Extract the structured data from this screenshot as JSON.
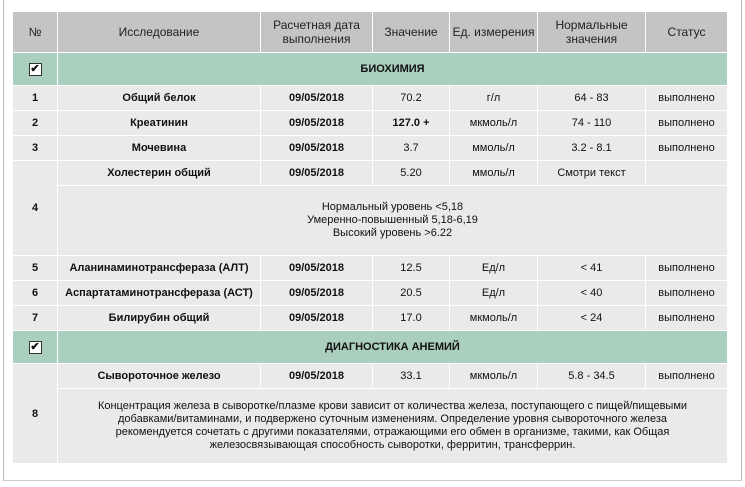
{
  "headers": [
    "№",
    "Исследование",
    "Расчетная дата выполнения",
    "Значение",
    "Ед. измерения",
    "Нормальные значения",
    "Статус"
  ],
  "sections": [
    {
      "title": "БИОХИМИЯ",
      "checked": true,
      "rows": [
        {
          "num": "1",
          "name": "Общий белок",
          "date": "09/05/2018",
          "value": "70.2",
          "unit": "г/л",
          "norm": "64 - 83",
          "status": "выполнено"
        },
        {
          "num": "2",
          "name": "Креатинин",
          "date": "09/05/2018",
          "value": "127.0 +",
          "unit": "мкмоль/л",
          "norm": "74 - 110",
          "status": "выполнено"
        },
        {
          "num": "3",
          "name": "Мочевина",
          "date": "09/05/2018",
          "value": "3.7",
          "unit": "ммоль/л",
          "norm": "3.2 - 8.1",
          "status": "выполнено"
        },
        {
          "num": "4",
          "name": "Холестерин общий",
          "date": "09/05/2018",
          "value": "5.20",
          "unit": "ммоль/л",
          "norm": "Смотри текст",
          "status": "",
          "note": [
            "Нормальный уровень <5,18",
            "Умеренно-повышенный 5,18-6,19",
            "Высокий уровень >6.22"
          ]
        },
        {
          "num": "5",
          "name": "Аланинаминотрансфераза (АЛТ)",
          "date": "09/05/2018",
          "value": "12.5",
          "unit": "Ед/л",
          "norm": "< 41",
          "status": "выполнено"
        },
        {
          "num": "6",
          "name": "Аспартатаминотрансфераза (АСТ)",
          "date": "09/05/2018",
          "value": "20.5",
          "unit": "Ед/л",
          "norm": "< 40",
          "status": "выполнено"
        },
        {
          "num": "7",
          "name": "Билирубин общий",
          "date": "09/05/2018",
          "value": "17.0",
          "unit": "мкмоль/л",
          "norm": "< 24",
          "status": "выполнено"
        }
      ]
    },
    {
      "title": "ДИАГНОСТИКА АНЕМИЙ",
      "checked": true,
      "rows": [
        {
          "num": "8",
          "name": "Сывороточное железо",
          "date": "09/05/2018",
          "value": "33.1",
          "unit": "мкмоль/л",
          "norm": "5.8 - 34.5",
          "status": "выполнено",
          "note": [
            "Концентрация железа в сыворотке/плазме крови зависит от количества железа, поступающего с пищей/пищевыми",
            "добавками/витаминами, и подвержено суточным изменениям. Определение уровня сывороточного железа",
            "рекомендуется сочетать с другими показателями, отражающими его обмен в организме, такими, как Общая",
            "железосвязывающая способность сыворотки, ферритин, трансферрин."
          ]
        }
      ]
    }
  ]
}
